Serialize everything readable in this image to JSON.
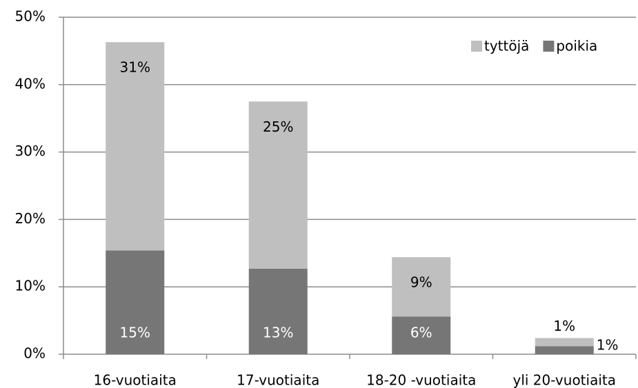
{
  "chart_data": {
    "type": "stacked_bar",
    "categories": [
      "16-vuotiaita",
      "17-vuotiaita",
      "18-20 -vuotiaita",
      "yli 20-vuotiaita"
    ],
    "series": [
      {
        "name": "poikia",
        "color": "#767676",
        "values": [
          15.4,
          12.7,
          5.6,
          1.2
        ],
        "value_labels": [
          "15%",
          "13%",
          "6%",
          "1%"
        ]
      },
      {
        "name": "tyttöjä",
        "color": "#bfbfbf",
        "values": [
          30.9,
          24.8,
          8.8,
          1.2
        ],
        "value_labels": [
          "31%",
          "25%",
          "9%",
          "1%"
        ]
      }
    ],
    "ylim": [
      0,
      50
    ],
    "yticks": [
      {
        "value": 0,
        "label": "0%"
      },
      {
        "value": 10,
        "label": "10%"
      },
      {
        "value": 20,
        "label": "20%"
      },
      {
        "value": 30,
        "label": "30%"
      },
      {
        "value": 40,
        "label": "40%"
      },
      {
        "value": 50,
        "label": "50%"
      }
    ],
    "grid": true,
    "legend": "upper right"
  }
}
